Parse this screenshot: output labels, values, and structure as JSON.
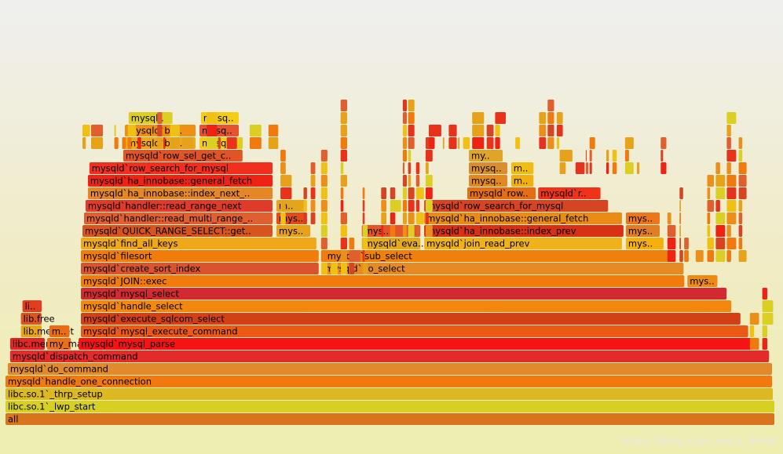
{
  "chart_data": {
    "type": "flamegraph",
    "title": "",
    "watermark": "https://blog.csdn.net/z_dmsd",
    "frames": [
      {
        "label": "all",
        "depth": 0,
        "start": 0.0,
        "width": 1.0,
        "color": "#d8731e"
      },
      {
        "label": "libc.so.1`_lwp_start",
        "depth": 1,
        "start": 0.0,
        "width": 1.0,
        "color": "#d5d023"
      },
      {
        "label": "libc.so.1`_thrp_setup",
        "depth": 2,
        "start": 0.0,
        "width": 0.998,
        "color": "#dcb822"
      },
      {
        "label": "mysqld`handle_one_connection",
        "depth": 3,
        "start": 0.0,
        "width": 0.997,
        "color": "#f07a0e"
      },
      {
        "label": "mysqld`do_command",
        "depth": 4,
        "start": 0.003,
        "width": 0.994,
        "color": "#e18a2c"
      },
      {
        "label": "mysqld`dispatch_command",
        "depth": 5,
        "start": 0.006,
        "width": 0.987,
        "color": "#e42a2a"
      },
      {
        "label": "libc.memcpy",
        "depth": 6,
        "start": 0.006,
        "width": 0.046,
        "color": "#e22626"
      },
      {
        "label": "my_malloc",
        "depth": 6,
        "start": 0.054,
        "width": 0.032,
        "color": "#e86f1e"
      },
      {
        "label": "mysqld`mysql_parse",
        "depth": 6,
        "start": 0.095,
        "width": 0.883,
        "color": "#f51313"
      },
      {
        "label": "lib.memset",
        "depth": 7,
        "start": 0.02,
        "width": 0.028,
        "color": "#e6a417"
      },
      {
        "label": "m..",
        "depth": 7,
        "start": 0.057,
        "width": 0.027,
        "color": "#ea6d13"
      },
      {
        "label": "mysqld`mysql_execute_command",
        "depth": 7,
        "start": 0.098,
        "width": 0.868,
        "color": "#ea5a16"
      },
      {
        "label": "lib.free",
        "depth": 8,
        "start": 0.02,
        "width": 0.028,
        "color": "#dd5424"
      },
      {
        "label": "mysqld`execute_sqlcom_select",
        "depth": 8,
        "start": 0.098,
        "width": 0.858,
        "color": "#d34016"
      },
      {
        "label": "li..",
        "depth": 9,
        "start": 0.022,
        "width": 0.026,
        "color": "#e43c20"
      },
      {
        "label": "mysqld`handle_select",
        "depth": 9,
        "start": 0.098,
        "width": 0.846,
        "color": "#f4880f"
      },
      {
        "label": "mysqld`mysql_select",
        "depth": 10,
        "start": 0.098,
        "width": 0.84,
        "color": "#d22a30"
      },
      {
        "label": "mysqld`JOIN::exec",
        "depth": 11,
        "start": 0.098,
        "width": 0.785,
        "color": "#f17b0b"
      },
      {
        "label": "mys..",
        "depth": 11,
        "start": 0.886,
        "width": 0.04,
        "color": "#ed8a16"
      },
      {
        "label": "mysqld`create_sort_index",
        "depth": 12,
        "start": 0.098,
        "width": 0.31,
        "color": "#d9542c"
      },
      {
        "label": "mysqld`do_select",
        "depth": 12,
        "start": 0.412,
        "width": 0.47,
        "color": "#e68a25"
      },
      {
        "label": "mysqld`filesort",
        "depth": 13,
        "start": 0.098,
        "width": 0.31,
        "color": "#f07c0c"
      },
      {
        "label": "mysqld`sub_select",
        "depth": 13,
        "start": 0.415,
        "width": 0.455,
        "color": "#f0800c"
      },
      {
        "label": "mysqld`find_all_keys",
        "depth": 14,
        "start": 0.098,
        "width": 0.307,
        "color": "#f0a81a"
      },
      {
        "label": "mysqld`eva..",
        "depth": 14,
        "start": 0.463,
        "width": 0.077,
        "color": "#e4aa1f"
      },
      {
        "label": "mysqld`join_read_prev",
        "depth": 14,
        "start": 0.544,
        "width": 0.258,
        "color": "#f0b21a"
      },
      {
        "label": "mys..",
        "depth": 14,
        "start": 0.806,
        "width": 0.05,
        "color": "#f5b00e"
      },
      {
        "label": "mysqld`QUICK_RANGE_SELECT::get..",
        "depth": 15,
        "start": 0.1,
        "width": 0.248,
        "color": "#d8541f"
      },
      {
        "label": "mys..",
        "depth": 15,
        "start": 0.352,
        "width": 0.045,
        "color": "#e5a21a"
      },
      {
        "label": "mys..",
        "depth": 15,
        "start": 0.463,
        "width": 0.077,
        "color": "#e4542a"
      },
      {
        "label": "mysqld`ha_innobase::index_prev",
        "depth": 15,
        "start": 0.544,
        "width": 0.26,
        "color": "#d63115"
      },
      {
        "label": "mys..",
        "depth": 15,
        "start": 0.806,
        "width": 0.045,
        "color": "#e07d25"
      },
      {
        "label": "mysqld`handler::read_multi_range_..",
        "depth": 16,
        "start": 0.102,
        "width": 0.246,
        "color": "#e05f2e"
      },
      {
        "label": "mys..",
        "depth": 16,
        "start": 0.352,
        "width": 0.04,
        "color": "#e04d17"
      },
      {
        "label": "mysqld`ha_innobase::general_fetch",
        "depth": 16,
        "start": 0.544,
        "width": 0.258,
        "color": "#e88b17"
      },
      {
        "label": "mys..",
        "depth": 16,
        "start": 0.806,
        "width": 0.045,
        "color": "#eb761c"
      },
      {
        "label": "mysqld`handler::read_range_next",
        "depth": 17,
        "start": 0.104,
        "width": 0.244,
        "color": "#df3b2b"
      },
      {
        "label": "m..",
        "depth": 17,
        "start": 0.352,
        "width": 0.04,
        "color": "#e5a41c"
      },
      {
        "label": "mysqld`row_search_for_mysql",
        "depth": 17,
        "start": 0.544,
        "width": 0.24,
        "color": "#d64424"
      },
      {
        "label": "mysqld`ha_innobase::index_next_..",
        "depth": 18,
        "start": 0.107,
        "width": 0.241,
        "color": "#e58727"
      },
      {
        "label": "mysqld`row..",
        "depth": 18,
        "start": 0.6,
        "width": 0.09,
        "color": "#e56d14"
      },
      {
        "label": "mysqld`r..",
        "depth": 18,
        "start": 0.692,
        "width": 0.082,
        "color": "#f0321b"
      },
      {
        "label": "mysqld`ha_innobase::general_fetch",
        "depth": 19,
        "start": 0.107,
        "width": 0.241,
        "color": "#ef2314"
      },
      {
        "label": "mysq..",
        "depth": 19,
        "start": 0.602,
        "width": 0.051,
        "color": "#e38921"
      },
      {
        "label": "m..",
        "depth": 19,
        "start": 0.657,
        "width": 0.03,
        "color": "#f1b011"
      },
      {
        "label": "mysqld`row_search_for_mysql",
        "depth": 20,
        "start": 0.109,
        "width": 0.239,
        "color": "#f02f1e"
      },
      {
        "label": "mysq..",
        "depth": 20,
        "start": 0.602,
        "width": 0.051,
        "color": "#d98d2d"
      },
      {
        "label": "m..",
        "depth": 20,
        "start": 0.657,
        "width": 0.03,
        "color": "#f0bd12"
      },
      {
        "label": "mysqld`row_sel_get_c..",
        "depth": 21,
        "start": 0.153,
        "width": 0.156,
        "color": "#df5525"
      },
      {
        "label": "my..",
        "depth": 21,
        "start": 0.602,
        "width": 0.045,
        "color": "#e0a428"
      },
      {
        "label": "mysqld`btr..",
        "depth": 22,
        "start": 0.155,
        "width": 0.093,
        "color": "#efa818"
      },
      {
        "label": "mysq..",
        "depth": 22,
        "start": 0.252,
        "width": 0.057,
        "color": "#f5cc10"
      },
      {
        "label": "mysqld`btr..",
        "depth": 23,
        "start": 0.155,
        "width": 0.093,
        "color": "#ee9014"
      },
      {
        "label": "mysq..",
        "depth": 23,
        "start": 0.252,
        "width": 0.052,
        "color": "#e4542e"
      },
      {
        "label": "mysql..",
        "depth": 24,
        "start": 0.16,
        "width": 0.058,
        "color": "#dcce22"
      },
      {
        "label": "mysq..",
        "depth": 24,
        "start": 0.254,
        "width": 0.05,
        "color": "#f2cd13"
      }
    ]
  }
}
